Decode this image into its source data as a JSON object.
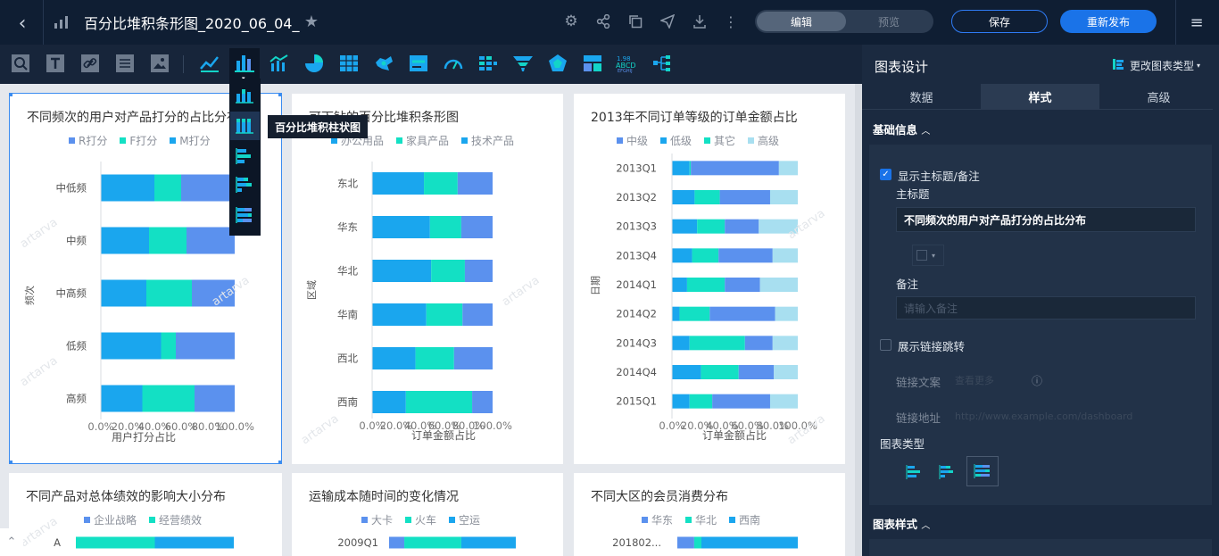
{
  "topbar": {
    "title": "百分比堆积条形图_2020_06_04_",
    "mode_edit": "编辑",
    "mode_preview": "预览",
    "save_label": "保存",
    "republish_label": "重新发布"
  },
  "tooltip": {
    "label": "百分比堆积柱状图"
  },
  "panel": {
    "title": "图表设计",
    "change_type": "更改图表类型",
    "tabs": [
      "数据",
      "样式",
      "高级"
    ],
    "section_basic": "基础信息",
    "show_title_label": "显示主标题/备注",
    "main_title_label": "主标题",
    "main_title_value": "不同频次的用户对产品打分的占比分布",
    "note_label": "备注",
    "note_placeholder": "请输入备注",
    "show_link_label": "展示链接跳转",
    "link_text_label": "链接文案",
    "link_text_placeholder": "查看更多",
    "link_url_label": "链接地址",
    "link_url_placeholder": "http://www.example.com/dashboard",
    "chart_type_label": "图表类型",
    "section_style": "图表样式",
    "colors": {
      "accent": "#1a73e8",
      "cyan": "#13d4c8"
    }
  },
  "watermark": "artarva",
  "chart_data": [
    {
      "type": "bar",
      "title": "不同频次的用户对产品打分的占比分布",
      "ylabel": "频次",
      "xlabel": "用户打分占比",
      "categories": [
        "中低频",
        "中频",
        "中高频",
        "低频",
        "高频"
      ],
      "series": [
        {
          "name": "R打分",
          "color": "#1aa6ee",
          "values": [
            40,
            36,
            34,
            45,
            31
          ]
        },
        {
          "name": "F打分",
          "color": "#13e0c4",
          "values": [
            20,
            28,
            34,
            11,
            39
          ]
        },
        {
          "name": "M打分",
          "color": "#5b91ee",
          "values": [
            40,
            36,
            32,
            44,
            30
          ]
        }
      ],
      "xticks": [
        "0.0%",
        "20.0%",
        "40.0%",
        "60.0%",
        "80.0%",
        "100.0%"
      ]
    },
    {
      "type": "bar",
      "title": "可下钻的百分比堆积条形图",
      "ylabel": "区域",
      "xlabel": "订单金额占比",
      "categories": [
        "东北",
        "华东",
        "华北",
        "华南",
        "西北",
        "西南"
      ],
      "series": [
        {
          "name": "办公用品",
          "color": "#1aa6ee",
          "values": [
            43,
            48,
            49,
            45,
            36,
            28
          ]
        },
        {
          "name": "家具产品",
          "color": "#13e0c4",
          "values": [
            28,
            26,
            28,
            30,
            32,
            55
          ]
        },
        {
          "name": "技术产品",
          "color": "#5b91ee",
          "values": [
            29,
            26,
            23,
            25,
            32,
            17
          ]
        }
      ],
      "xticks": [
        "0.0%",
        "20.0%",
        "40.0%",
        "60.0%",
        "80.0%",
        "100.0%"
      ]
    },
    {
      "type": "bar",
      "title": "2013年不同订单等级的订单金额占比",
      "ylabel": "日期",
      "xlabel": "订单金额占比",
      "categories": [
        "2013Q1",
        "2013Q2",
        "2013Q3",
        "2013Q4",
        "2014Q1",
        "2014Q2",
        "2014Q3",
        "2014Q4",
        "2015Q1"
      ],
      "series": [
        {
          "name": "中级",
          "color": "#1aa6ee",
          "values": [
            14,
            18,
            20,
            16,
            12,
            6,
            14,
            23,
            14
          ]
        },
        {
          "name": "低级",
          "color": "#13e0c4",
          "values": [
            1,
            20,
            22,
            21,
            30,
            24,
            44,
            30,
            18
          ]
        },
        {
          "name": "其它",
          "color": "#5b91ee",
          "values": [
            70,
            40,
            27,
            43,
            28,
            52,
            22,
            28,
            46
          ]
        },
        {
          "name": "高级",
          "color": "#a8dff0",
          "values": [
            15,
            22,
            31,
            20,
            30,
            18,
            20,
            19,
            22
          ]
        }
      ],
      "xticks": [
        "0.0%",
        "20.0%",
        "40.0%",
        "60.0%",
        "80.0%",
        "100.0%"
      ]
    },
    {
      "type": "bar",
      "title": "不同产品对总体绩效的影响大小分布",
      "categories": [
        "A"
      ],
      "series": [
        {
          "name": "企业战略",
          "color": "#5b91ee",
          "values": [
            0
          ]
        },
        {
          "name": "经营绩效",
          "color": "#13e0c4",
          "values": [
            50
          ]
        },
        {
          "name": "",
          "color": "#1aa6ee",
          "values": [
            50
          ]
        }
      ]
    },
    {
      "type": "bar",
      "title": "运输成本随时间的变化情况",
      "categories": [
        "2009Q1"
      ],
      "series": [
        {
          "name": "大卡",
          "color": "#5b91ee",
          "values": [
            12
          ]
        },
        {
          "name": "火车",
          "color": "#13e0c4",
          "values": [
            45
          ]
        },
        {
          "name": "空运",
          "color": "#1aa6ee",
          "values": [
            43
          ]
        }
      ]
    },
    {
      "type": "bar",
      "title": "不同大区的会员消费分布",
      "categories": [
        "201802..."
      ],
      "series": [
        {
          "name": "华东",
          "color": "#5b91ee",
          "values": [
            14
          ]
        },
        {
          "name": "华北",
          "color": "#13e0c4",
          "values": [
            6
          ]
        },
        {
          "name": "西南",
          "color": "#1aa6ee",
          "values": [
            80
          ]
        }
      ]
    }
  ]
}
